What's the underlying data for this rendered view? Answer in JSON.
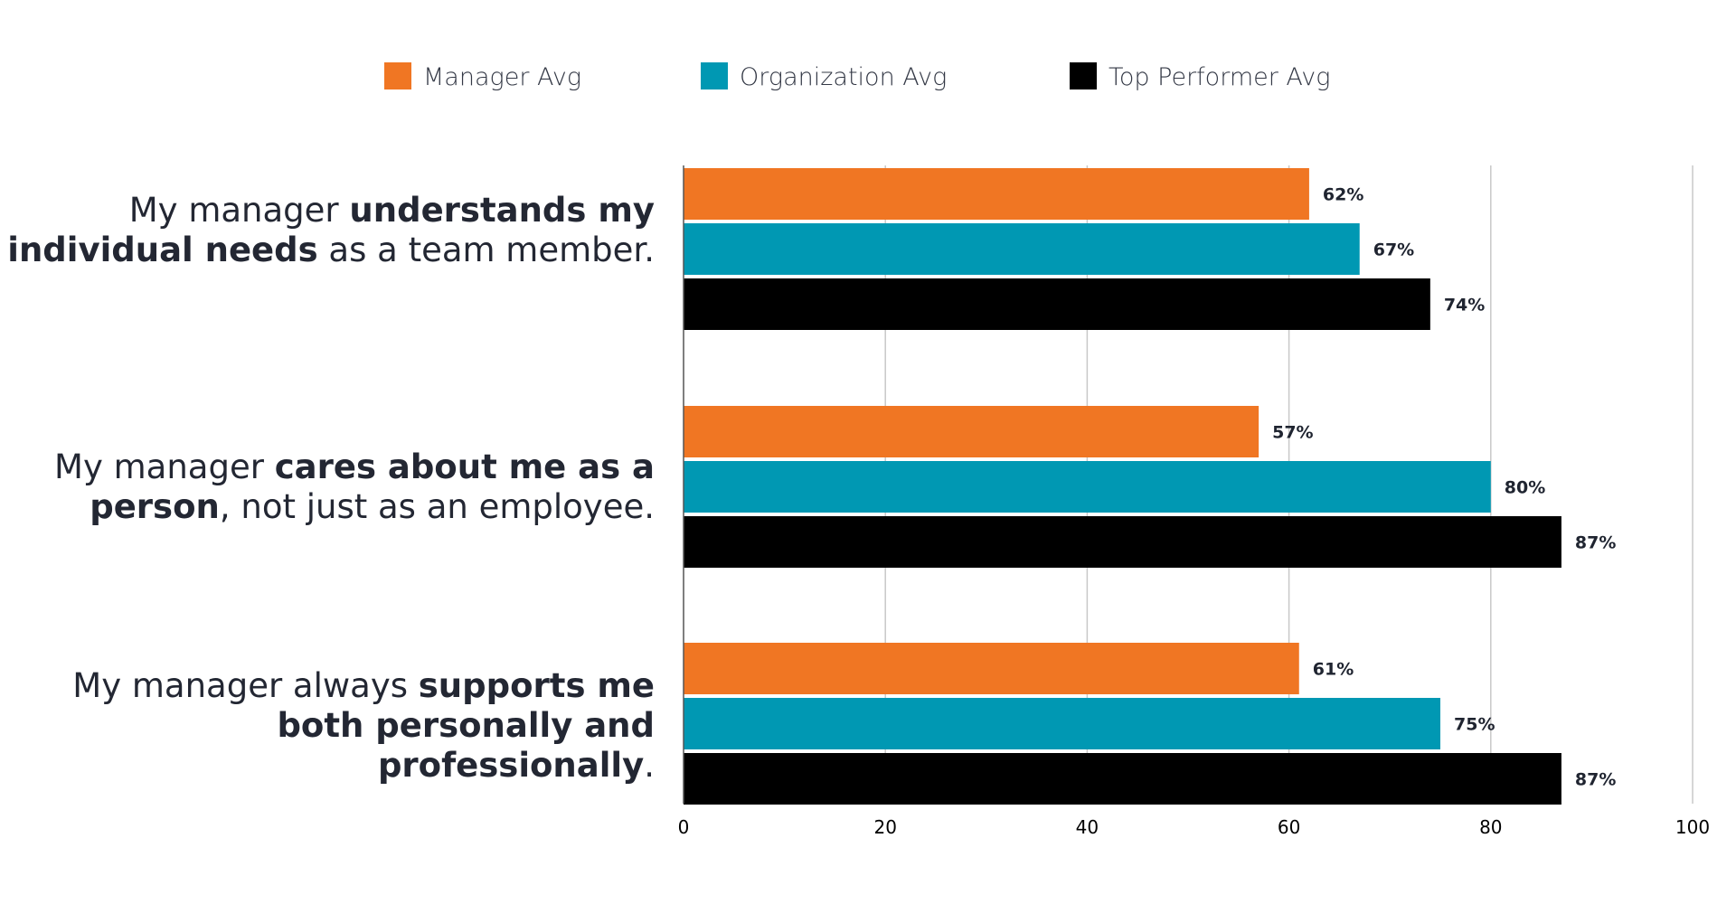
{
  "chart_data": {
    "type": "bar",
    "orientation": "horizontal",
    "legend_position": "top",
    "grid": true,
    "xlim": [
      0,
      100
    ],
    "x_ticks": [
      "0",
      "20",
      "40",
      "60",
      "80",
      "100"
    ],
    "categories": [
      {
        "label": "My manager understands my individual needs as a team member.",
        "lines": [
          [
            {
              "text": "My manager ",
              "bold": false
            },
            {
              "text": "understands my",
              "bold": true
            }
          ],
          [
            {
              "text": "individual needs",
              "bold": true
            },
            {
              "text": " as a team member.",
              "bold": false
            }
          ]
        ]
      },
      {
        "label": "My manager cares about me as a person, not just as an employee.",
        "lines": [
          [
            {
              "text": "My manager ",
              "bold": false
            },
            {
              "text": "cares about me as a",
              "bold": true
            }
          ],
          [
            {
              "text": "person",
              "bold": true
            },
            {
              "text": ", not just as an employee.",
              "bold": false
            }
          ]
        ]
      },
      {
        "label": "My manager always supports me both personally and professionally.",
        "lines": [
          [
            {
              "text": "My manager always ",
              "bold": false
            },
            {
              "text": "supports me",
              "bold": true
            }
          ],
          [
            {
              "text": "both personally and",
              "bold": true
            }
          ],
          [
            {
              "text": "professionally",
              "bold": true
            },
            {
              "text": ".",
              "bold": false
            }
          ]
        ]
      }
    ],
    "series": [
      {
        "name": "Manager Avg",
        "color": "#f07623",
        "values": [
          62,
          57,
          61
        ],
        "labels": [
          "62%",
          "57%",
          "61%"
        ]
      },
      {
        "name": "Organization Avg",
        "color": "#0098b3",
        "values": [
          67,
          80,
          75
        ],
        "labels": [
          "67%",
          "80%",
          "75%"
        ]
      },
      {
        "name": "Top Performer Avg",
        "color": "#000000",
        "values": [
          74,
          87,
          87
        ],
        "labels": [
          "74%",
          "87%",
          "87%"
        ]
      }
    ]
  }
}
